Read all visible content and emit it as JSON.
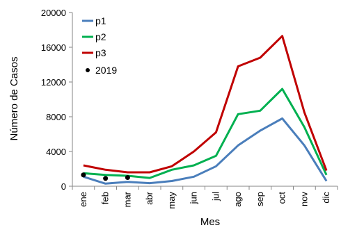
{
  "chart_data": {
    "type": "line",
    "categories": [
      "ene",
      "feb",
      "mar",
      "abr",
      "may",
      "jun",
      "jul",
      "ago",
      "sep",
      "oct",
      "nov",
      "dic"
    ],
    "series": [
      {
        "name": "p1",
        "color": "#4a7ebb",
        "values": [
          1100,
          300,
          500,
          350,
          600,
          1100,
          2300,
          4700,
          6400,
          7800,
          4700,
          600
        ]
      },
      {
        "name": "p2",
        "color": "#00b050",
        "values": [
          1500,
          1300,
          1200,
          950,
          1900,
          2400,
          3500,
          8300,
          8700,
          11200,
          6800,
          1300
        ]
      },
      {
        "name": "p3",
        "color": "#c00000",
        "values": [
          2400,
          1900,
          1600,
          1600,
          2300,
          4000,
          6200,
          13800,
          14800,
          17300,
          8500,
          1800
        ]
      }
    ],
    "points": {
      "name": "2019",
      "color": "#000000",
      "values": [
        1300,
        900,
        1000
      ]
    },
    "ylabel": "Número de Casos",
    "xlabel": "Mes",
    "ylim": [
      0,
      20000
    ],
    "yticks": [
      0,
      4000,
      8000,
      12000,
      16000,
      20000
    ],
    "legend_position": "top-left"
  }
}
